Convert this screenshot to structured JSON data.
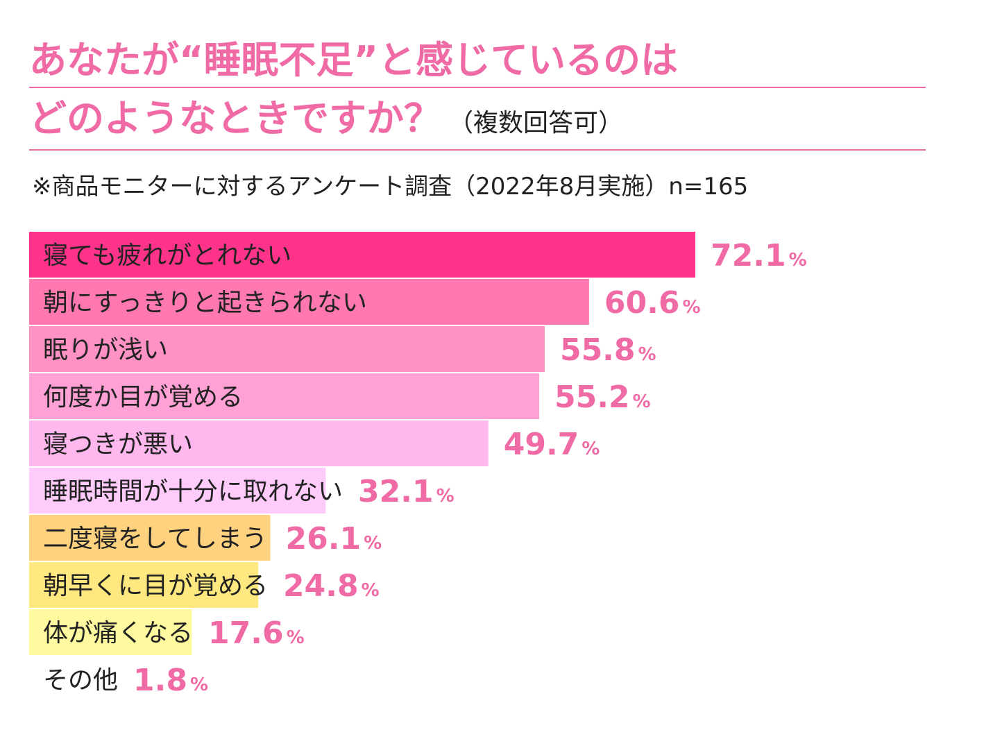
{
  "title": {
    "line1": "あなたが“睡眠不足”と感じているのは",
    "line2": "どのようなときですか？",
    "note": "（複数回答可）"
  },
  "subtitle": "※商品モニターに対するアンケート調査（2022年8月実施）n=165",
  "colors": {
    "title": "#f06ba6",
    "value_text": "#f06ba6",
    "label_text": "#222222"
  },
  "chart_data": {
    "type": "bar",
    "orientation": "horizontal",
    "unit": "%",
    "categories": [
      "寝ても疲れがとれない",
      "朝にすっきりと起きられない",
      "眠りが浅い",
      "何度か目が覚める",
      "寝つきが悪い",
      "睡眠時間が十分に取れない",
      "二度寝をしてしまう",
      "朝早くに目が覚める",
      "体が痛くなる",
      "その他"
    ],
    "values": [
      72.1,
      60.6,
      55.8,
      55.2,
      49.7,
      32.1,
      26.1,
      24.8,
      17.6,
      1.8
    ],
    "value_labels": [
      "72.1",
      "60.6",
      "55.8",
      "55.2",
      "49.7",
      "32.1",
      "26.1",
      "24.8",
      "17.6",
      "1.8"
    ],
    "bar_colors": [
      "#ff3389",
      "#ff79b0",
      "#ff92c5",
      "#ffa1d4",
      "#ffb8ee",
      "#ffcbfa",
      "#ffd27f",
      "#ffe87f",
      "#fffaa0",
      "#ffffff"
    ],
    "xlim": [
      0,
      72.1
    ],
    "grid": false,
    "legend": "none"
  }
}
